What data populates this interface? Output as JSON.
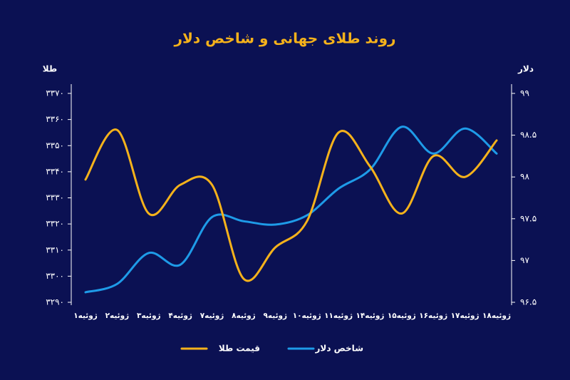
{
  "chart_data": {
    "type": "line",
    "title": "روند طلای جهانی و شاخص دلار",
    "y_label": "طلا",
    "y2_label": "دلار",
    "categories": [
      "۱ژوئیه",
      "۲ژوئیه",
      "۳ژوئیه",
      "۴ژوئیه",
      "۷ژوئیه",
      "۸ژوئیه",
      "۹ژوئیه",
      "۱۰ژوئیه",
      "۱۱ژوئیه",
      "۱۴ژوئیه",
      "۱۵ژوئیه",
      "۱۶ژوئیه",
      "۱۷ژوئیه",
      "۱۸ژوئیه"
    ],
    "series": [
      {
        "name": "شاخص دلار",
        "color": "#1e9be8",
        "axis": "y2",
        "values": [
          96.62,
          96.72,
          97.09,
          96.95,
          97.52,
          97.47,
          97.43,
          97.54,
          97.86,
          98.09,
          98.6,
          98.28,
          98.58,
          98.28
        ]
      },
      {
        "name": "قیمت طلا",
        "color": "#f5b21b",
        "values": [
          3337,
          3356,
          3324,
          3335,
          3335,
          3299,
          3311,
          3321,
          3355,
          3342,
          3324,
          3346,
          3338,
          3352
        ]
      }
    ],
    "ylim": [
      3290,
      3370
    ],
    "yticks": [
      {
        "value": 3290,
        "label": "۳۲۹۰"
      },
      {
        "value": 3300,
        "label": "۳۳۰۰"
      },
      {
        "value": 3310,
        "label": "۳۳۱۰"
      },
      {
        "value": 3320,
        "label": "۳۳۲۰"
      },
      {
        "value": 3330,
        "label": "۳۳۳۰"
      },
      {
        "value": 3340,
        "label": "۳۳۴۰"
      },
      {
        "value": 3350,
        "label": "۳۳۵۰"
      },
      {
        "value": 3360,
        "label": "۳۳۶۰"
      },
      {
        "value": 3370,
        "label": "۳۳۷۰"
      }
    ],
    "y2lim": [
      96.5,
      99
    ],
    "y2ticks": [
      {
        "value": 96.5,
        "label": "۹۶.۵"
      },
      {
        "value": 97,
        "label": "۹۷"
      },
      {
        "value": 97.5,
        "label": "۹۷.۵"
      },
      {
        "value": 98,
        "label": "۹۸"
      },
      {
        "value": 98.5,
        "label": "۹۸.۵"
      },
      {
        "value": 99,
        "label": "۹۹"
      }
    ],
    "title_color": "#f5b21b"
  }
}
